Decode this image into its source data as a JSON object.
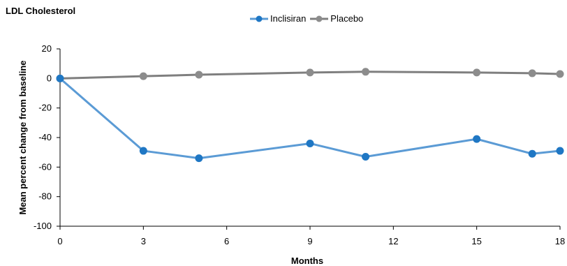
{
  "chart_data": {
    "type": "line",
    "title": "LDL Cholesterol",
    "xlabel": "Months",
    "ylabel": "Mean percent change from baseline",
    "x_ticks": [
      "0",
      "3",
      "6",
      "9",
      "12",
      "15",
      "18"
    ],
    "y_ticks": [
      "20",
      "0",
      "-20",
      "-40",
      "-60",
      "-80",
      "-100"
    ],
    "xlim": [
      0,
      18
    ],
    "ylim": [
      -100,
      20
    ],
    "grid": false,
    "legend_position": "top-center",
    "series": [
      {
        "name": "Inclisiran",
        "color": "#5b9bd5",
        "marker_color": "#1f77c4",
        "points": [
          {
            "x": 0,
            "y": 0
          },
          {
            "x": 3,
            "y": -49
          },
          {
            "x": 5,
            "y": -54
          },
          {
            "x": 9,
            "y": -44
          },
          {
            "x": 11,
            "y": -53
          },
          {
            "x": 15,
            "y": -41
          },
          {
            "x": 17,
            "y": -51
          },
          {
            "x": 18,
            "y": -49
          }
        ]
      },
      {
        "name": "Placebo",
        "color": "#7f7f7f",
        "marker_color": "#8c8c8c",
        "points": [
          {
            "x": 0,
            "y": 0
          },
          {
            "x": 3,
            "y": 1.5
          },
          {
            "x": 5,
            "y": 2.5
          },
          {
            "x": 9,
            "y": 4
          },
          {
            "x": 11,
            "y": 4.5
          },
          {
            "x": 15,
            "y": 4
          },
          {
            "x": 17,
            "y": 3.5
          },
          {
            "x": 18,
            "y": 3
          }
        ]
      }
    ]
  }
}
